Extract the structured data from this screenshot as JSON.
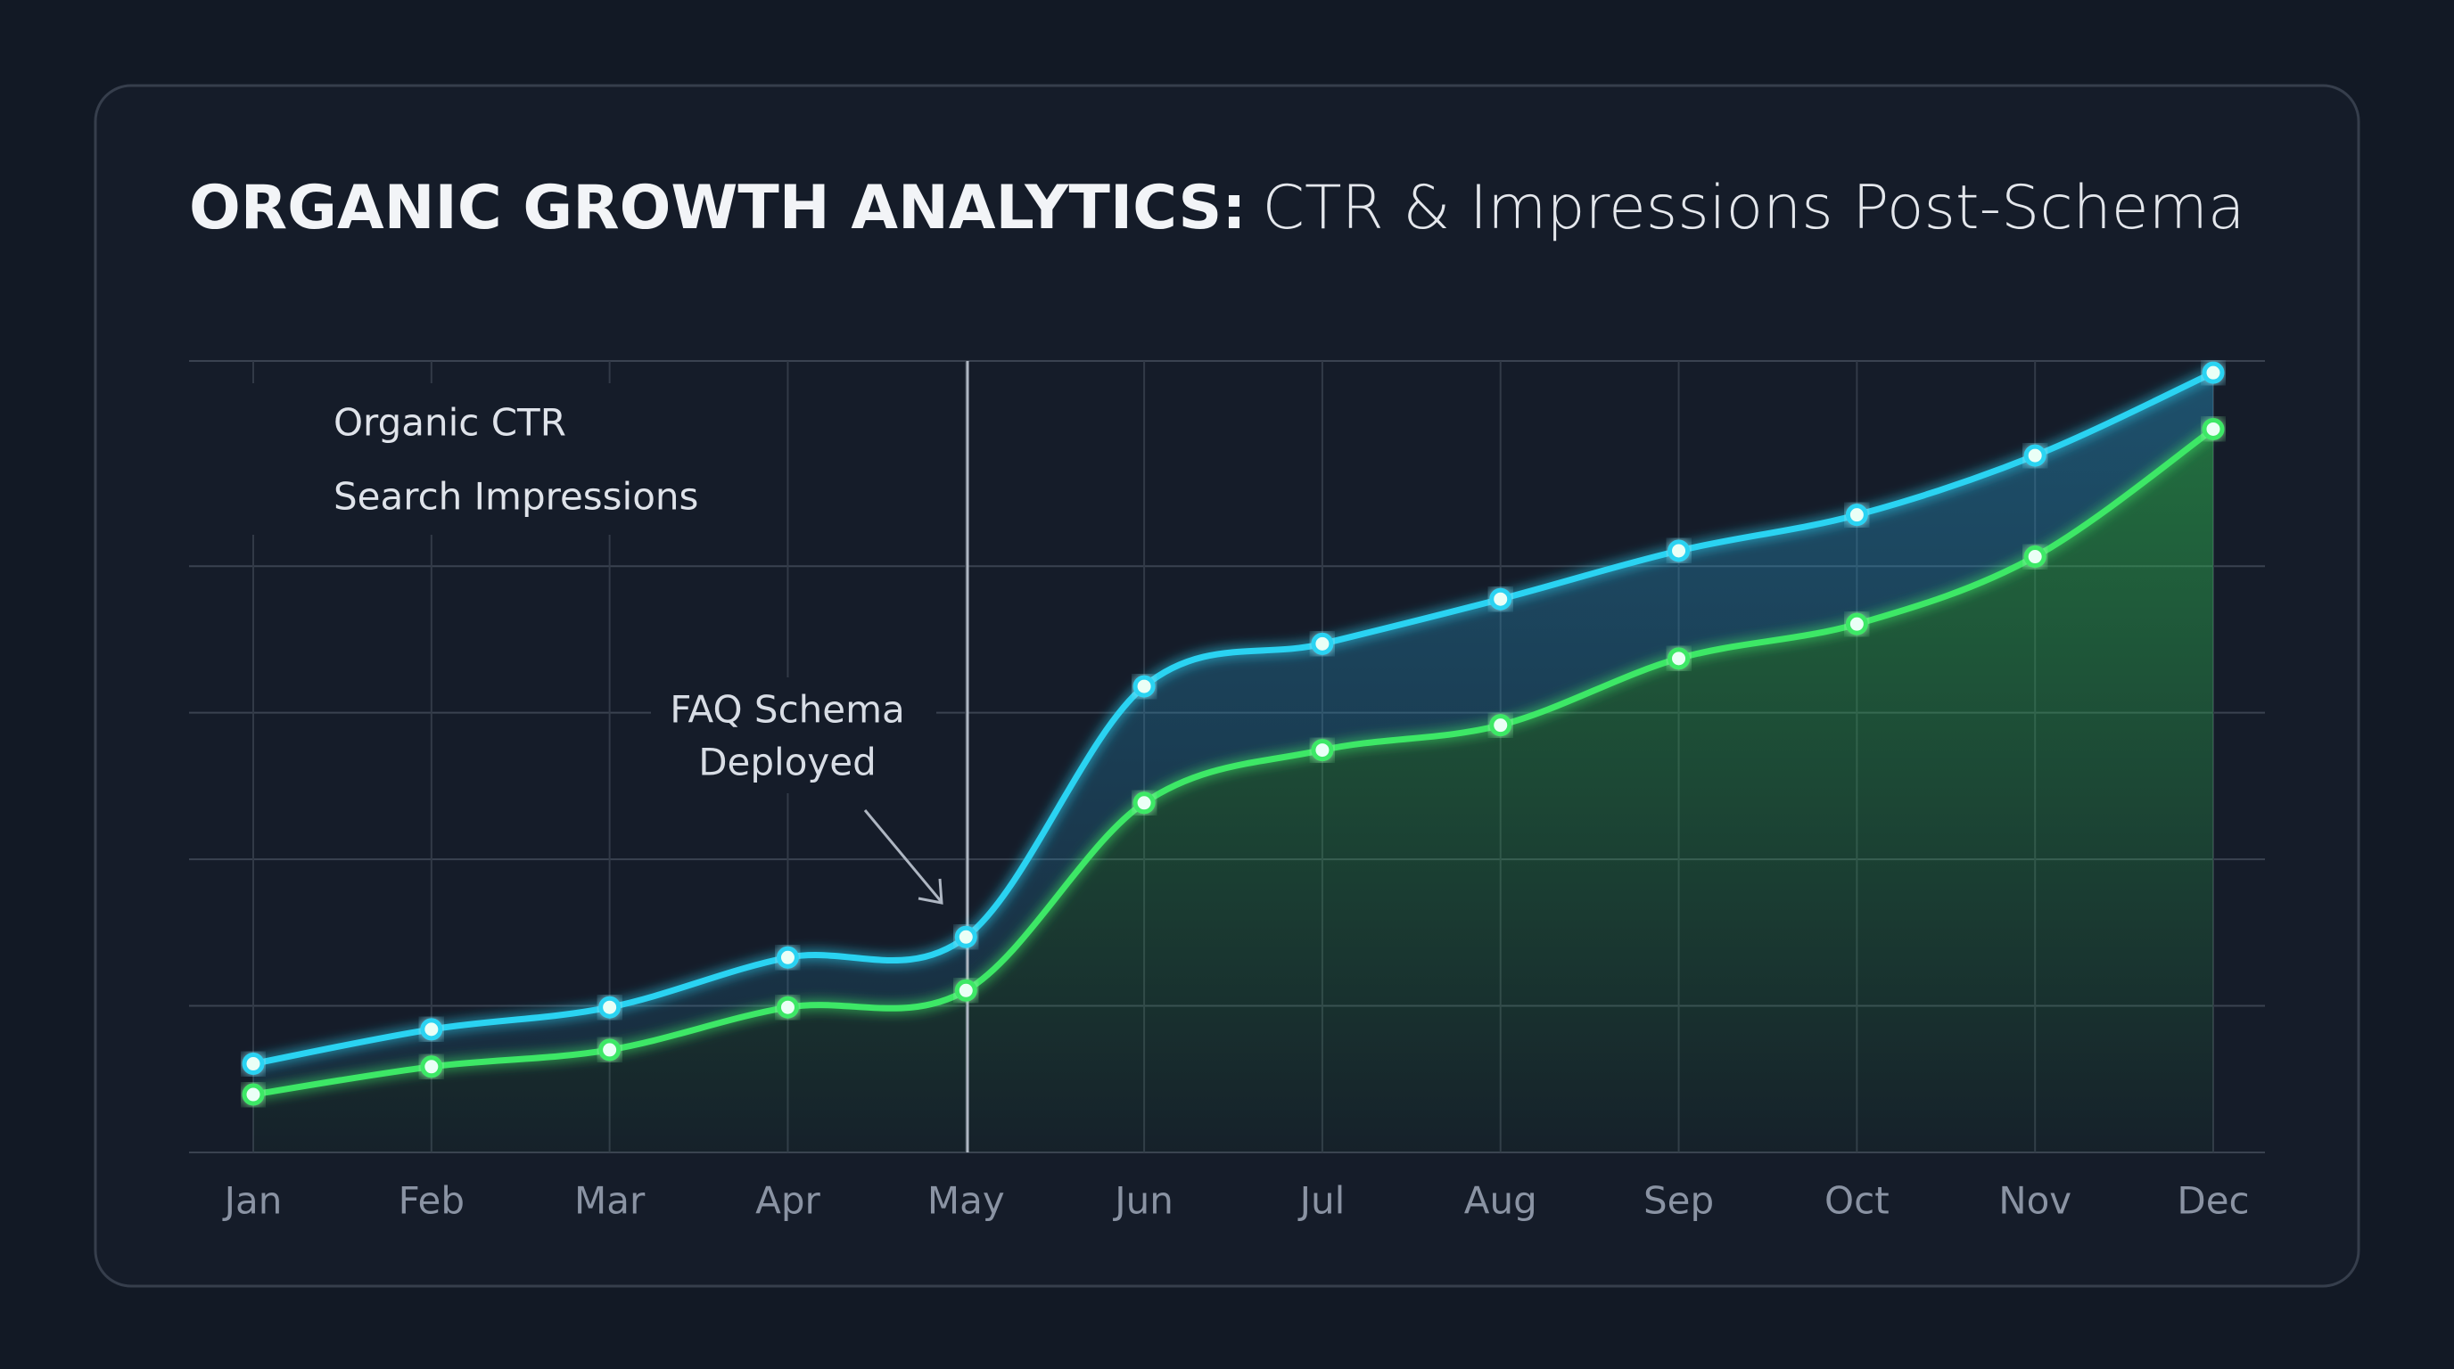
{
  "chart_data": {
    "type": "line",
    "title": "ORGANIC GROWTH ANALYTICS:",
    "subtitle": "CTR & Impressions Post-Schema",
    "annotation": [
      "FAQ Schema",
      "Deployed"
    ],
    "categories": [
      "Jan",
      "Feb",
      "Mar",
      "Apr",
      "May",
      "Jun",
      "Jul",
      "Aug",
      "Sep",
      "Oct",
      "Nov",
      "Dec"
    ],
    "series": [
      {
        "name": "Organic CTR",
        "color": "#2ad3f2",
        "values": [
          12.1,
          16.8,
          19.8,
          26.6,
          29.4,
          63.6,
          69.4,
          75.5,
          82.1,
          87.0,
          95.1,
          106.4
        ]
      },
      {
        "name": "Search Impressions",
        "color": "#3ee866",
        "values": [
          7.9,
          11.7,
          14.0,
          19.8,
          22.1,
          47.7,
          54.9,
          58.3,
          67.4,
          72.1,
          81.3,
          98.7
        ]
      }
    ],
    "ylim": [
      0,
      108
    ],
    "yticks": [
      0,
      20,
      40,
      60,
      80,
      108
    ],
    "grid": true,
    "legend": "top-left"
  }
}
